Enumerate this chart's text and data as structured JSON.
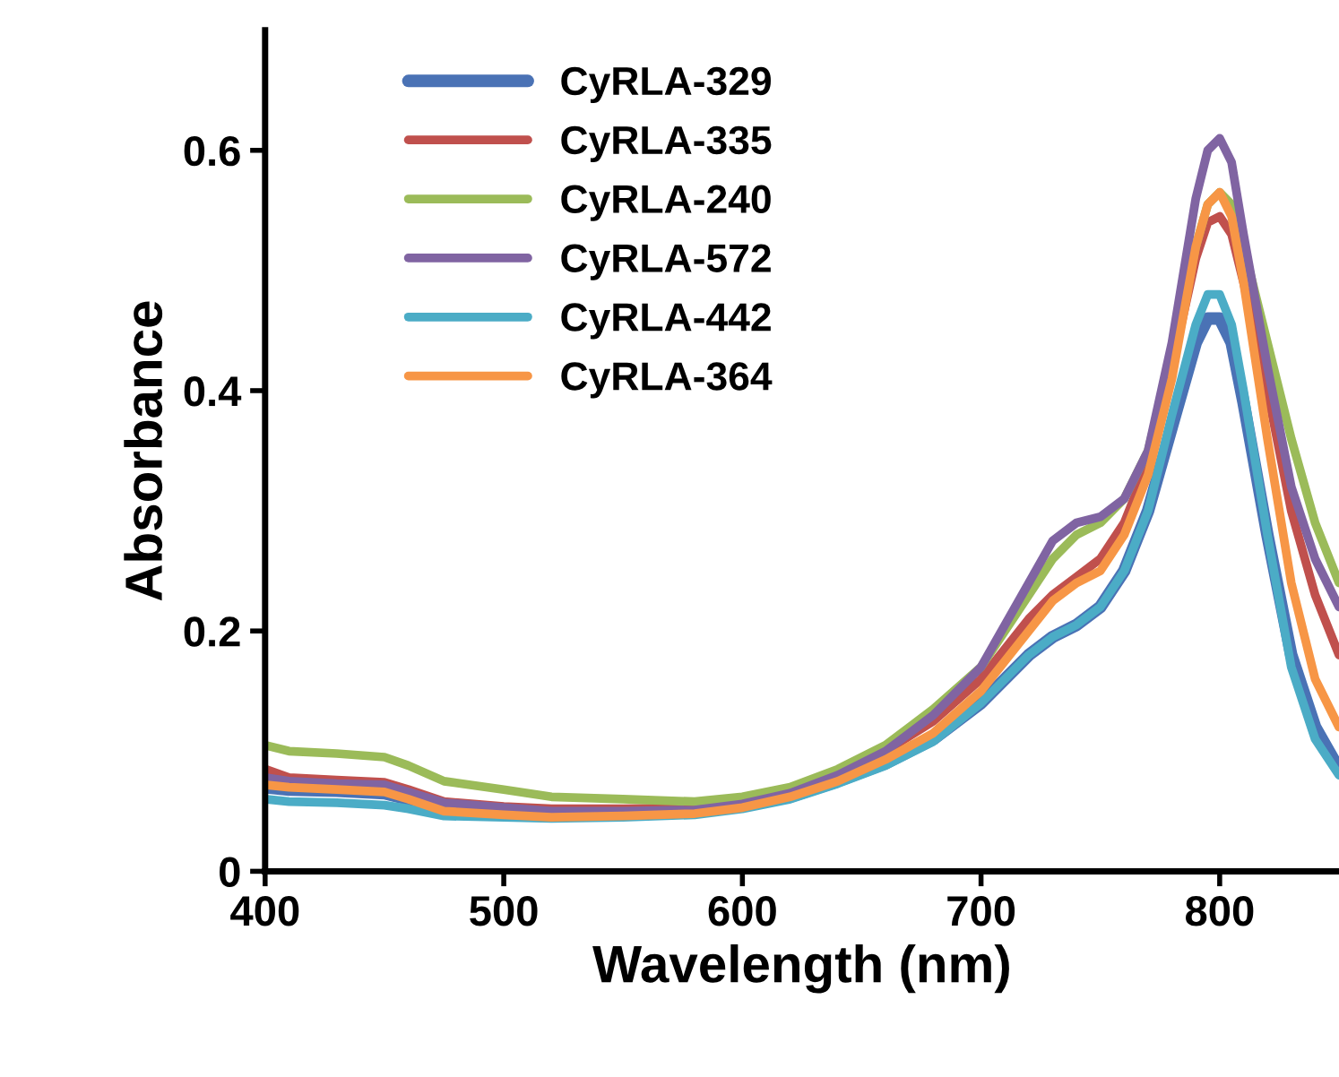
{
  "chart_data": {
    "type": "line",
    "xlabel": "Wavelength (nm)",
    "ylabel": "Absorbance",
    "x": [
      400,
      410,
      430,
      450,
      460,
      475,
      500,
      520,
      550,
      580,
      600,
      620,
      640,
      660,
      680,
      700,
      720,
      730,
      740,
      750,
      760,
      770,
      780,
      790,
      795,
      800,
      805,
      810,
      820,
      830,
      840,
      850
    ],
    "xlim": [
      400,
      850
    ],
    "ylim": [
      0,
      0.7
    ],
    "xticks": [
      400,
      500,
      600,
      700,
      800
    ],
    "yticks": [
      0,
      0.2,
      0.4,
      0.6
    ],
    "grid": false,
    "legend": "top left",
    "marker": "none",
    "line_style": "solid",
    "series": [
      {
        "name": "CyRLA-329",
        "color": "#4a72b5",
        "values": [
          0.07,
          0.068,
          0.067,
          0.065,
          0.06,
          0.052,
          0.05,
          0.048,
          0.048,
          0.05,
          0.055,
          0.062,
          0.075,
          0.09,
          0.11,
          0.14,
          0.18,
          0.195,
          0.205,
          0.22,
          0.25,
          0.3,
          0.37,
          0.44,
          0.46,
          0.46,
          0.44,
          0.39,
          0.28,
          0.18,
          0.12,
          0.085
        ]
      },
      {
        "name": "CyRLA-335",
        "color": "#c0504d",
        "values": [
          0.085,
          0.078,
          0.076,
          0.074,
          0.068,
          0.058,
          0.054,
          0.052,
          0.052,
          0.053,
          0.058,
          0.066,
          0.08,
          0.1,
          0.125,
          0.16,
          0.21,
          0.23,
          0.245,
          0.26,
          0.29,
          0.34,
          0.42,
          0.51,
          0.54,
          0.545,
          0.53,
          0.49,
          0.4,
          0.3,
          0.23,
          0.18
        ]
      },
      {
        "name": "CyRLA-240",
        "color": "#9bbb59",
        "values": [
          0.105,
          0.1,
          0.098,
          0.095,
          0.088,
          0.075,
          0.068,
          0.062,
          0.06,
          0.058,
          0.062,
          0.07,
          0.085,
          0.105,
          0.135,
          0.17,
          0.23,
          0.26,
          0.28,
          0.29,
          0.31,
          0.35,
          0.43,
          0.52,
          0.555,
          0.565,
          0.555,
          0.52,
          0.44,
          0.36,
          0.29,
          0.24
        ]
      },
      {
        "name": "CyRLA-572",
        "color": "#8064a2",
        "values": [
          0.078,
          0.075,
          0.073,
          0.072,
          0.066,
          0.057,
          0.053,
          0.05,
          0.05,
          0.051,
          0.056,
          0.065,
          0.08,
          0.1,
          0.13,
          0.17,
          0.24,
          0.275,
          0.29,
          0.295,
          0.31,
          0.35,
          0.44,
          0.56,
          0.6,
          0.61,
          0.59,
          0.53,
          0.42,
          0.32,
          0.26,
          0.22
        ]
      },
      {
        "name": "CyRLA-442",
        "color": "#4bacc6",
        "values": [
          0.06,
          0.058,
          0.057,
          0.055,
          0.052,
          0.046,
          0.045,
          0.044,
          0.045,
          0.047,
          0.052,
          0.06,
          0.073,
          0.088,
          0.108,
          0.14,
          0.18,
          0.195,
          0.205,
          0.22,
          0.25,
          0.3,
          0.38,
          0.455,
          0.48,
          0.48,
          0.455,
          0.4,
          0.28,
          0.17,
          0.11,
          0.08
        ]
      },
      {
        "name": "CyRLA-364",
        "color": "#f79646",
        "values": [
          0.072,
          0.07,
          0.068,
          0.066,
          0.06,
          0.05,
          0.047,
          0.045,
          0.046,
          0.048,
          0.053,
          0.062,
          0.075,
          0.093,
          0.115,
          0.15,
          0.2,
          0.225,
          0.24,
          0.25,
          0.28,
          0.33,
          0.41,
          0.52,
          0.555,
          0.565,
          0.545,
          0.49,
          0.36,
          0.24,
          0.16,
          0.12
        ]
      }
    ]
  }
}
